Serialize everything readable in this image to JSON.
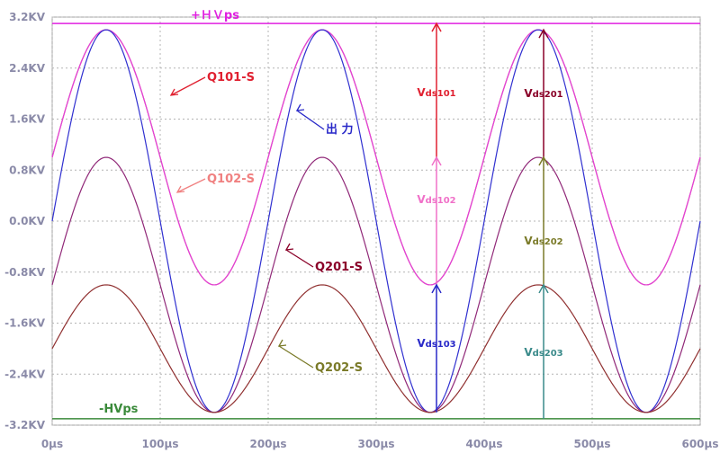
{
  "chart_data": {
    "type": "line",
    "xlabel": "",
    "ylabel": "",
    "xlim": [
      0,
      600
    ],
    "ylim": [
      -3.2,
      3.2
    ],
    "grid": true,
    "x_ticks": [
      "0µs",
      "100µs",
      "200µs",
      "300µs",
      "400µs",
      "500µs",
      "600µs"
    ],
    "y_ticks": [
      "3.2KV",
      "2.4KV",
      "1.6KV",
      "0.8KV",
      "0.0KV",
      "-0.8KV",
      "-1.6KV",
      "-2.4KV",
      "-3.2KV"
    ],
    "period_us": 200,
    "series": [
      {
        "name": "Q101-S",
        "offset_kv": 1.0,
        "amplitude_kv": 2.0,
        "color": "#e8402a"
      },
      {
        "name": "Q102-S",
        "offset_kv": 1.0,
        "amplitude_kv": 2.0,
        "color": "#e040e0"
      },
      {
        "name": "出 力",
        "offset_kv": 0.0,
        "amplitude_kv": 3.0,
        "color": "#3030d0"
      },
      {
        "name": "Q201-S",
        "offset_kv": -1.0,
        "amplitude_kv": 2.0,
        "color": "#902878"
      },
      {
        "name": "Q202-S",
        "offset_kv": -2.0,
        "amplitude_kv": 1.0,
        "color": "#903030"
      }
    ],
    "rails": [
      {
        "label": "+ＨＶps",
        "value_kv": 3.1,
        "color": "#e020e0"
      },
      {
        "label": "-HVps",
        "value_kv": -3.1,
        "color": "#3a8a3a"
      }
    ],
    "annotations": [
      {
        "main": "V",
        "sub": "ds101",
        "color": "#e02030"
      },
      {
        "main": "V",
        "sub": "ds102",
        "color": "#f070c8"
      },
      {
        "main": "V",
        "sub": "ds103",
        "color": "#2828c8"
      },
      {
        "main": "V",
        "sub": "ds201",
        "color": "#8a0028"
      },
      {
        "main": "V",
        "sub": "ds202",
        "color": "#7a7a28"
      },
      {
        "main": "V",
        "sub": "ds203",
        "color": "#3a8a8a"
      }
    ],
    "wave_labels": [
      {
        "text": "Q101-S",
        "color": "#e02030"
      },
      {
        "text": "Q102-S",
        "color": "#f08080"
      },
      {
        "text": "出 力",
        "color": "#2828c8"
      },
      {
        "text": "Q201-S",
        "color": "#8a0028"
      },
      {
        "text": "Q202-S",
        "color": "#7a7a28"
      }
    ]
  }
}
